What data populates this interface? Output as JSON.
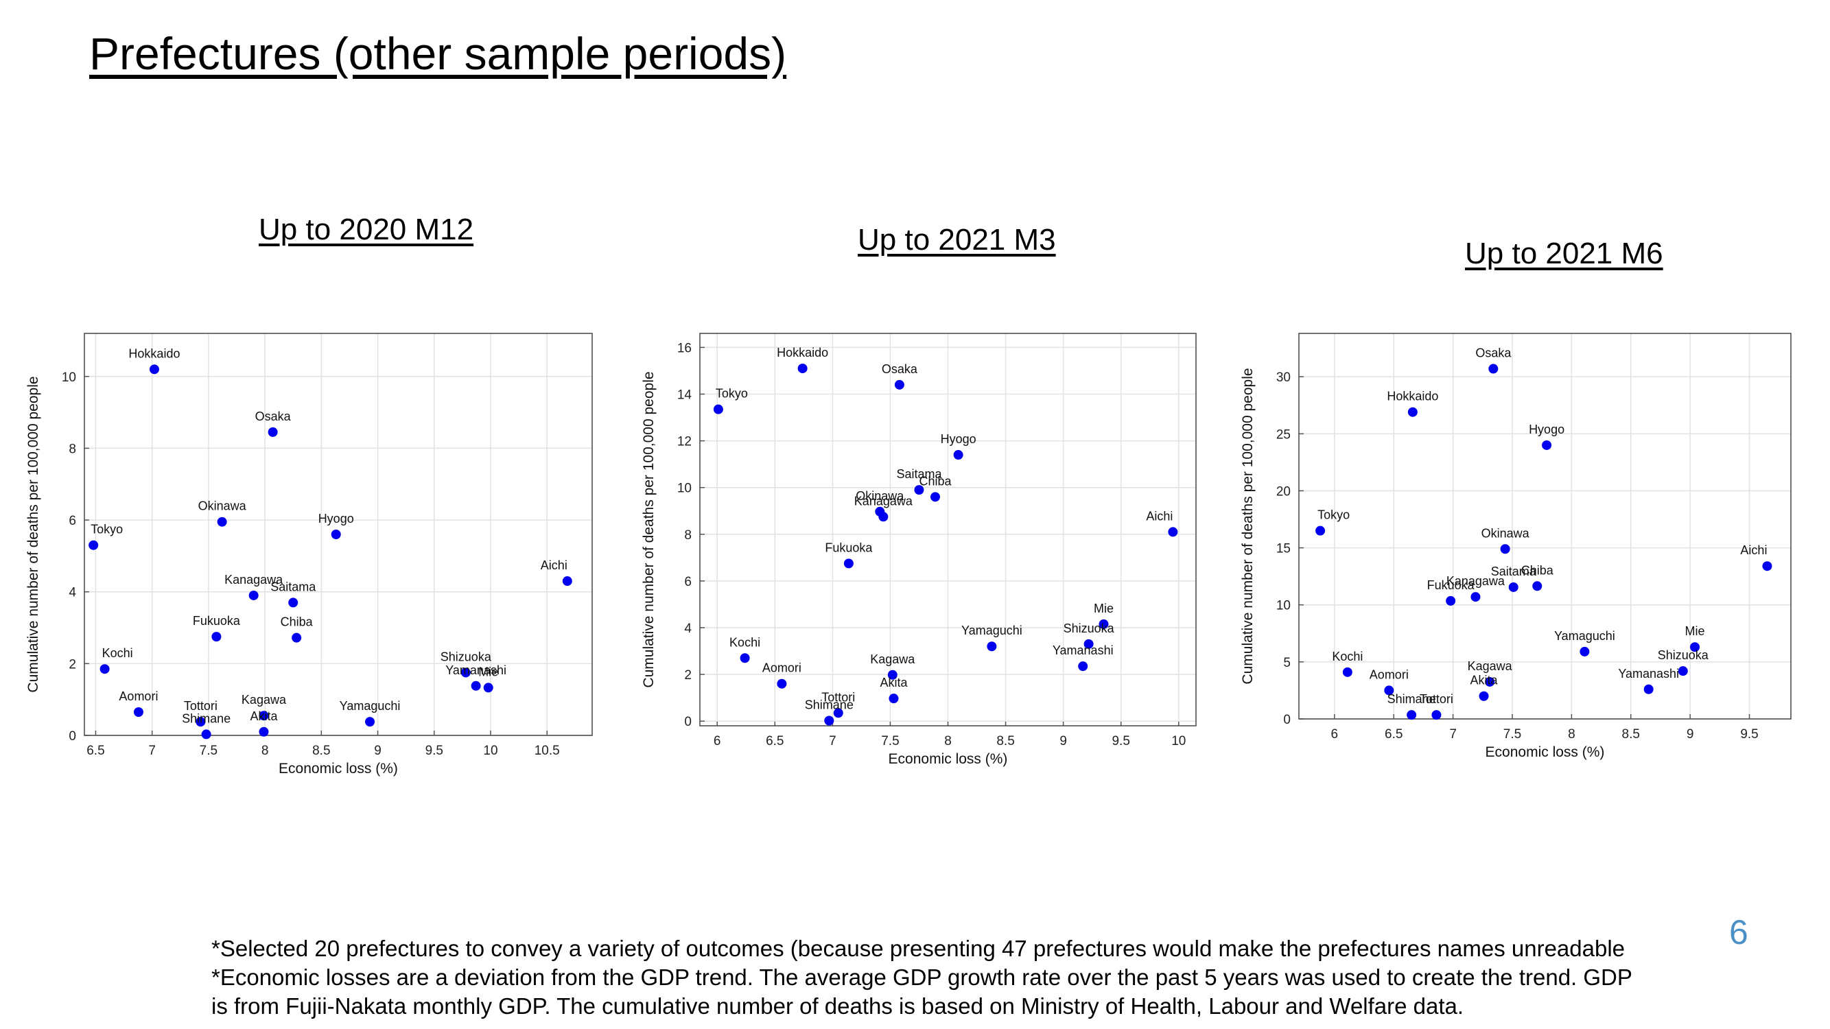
{
  "slide": {
    "title": "Prefectures (other sample periods)",
    "page_number": "6",
    "page_number_color": "#4a90c6",
    "point_color": "#0000ee",
    "footnotes": [
      "*Selected 20 prefectures to convey a variety of outcomes (because presenting 47 prefectures would make the prefectures names unreadable",
      "*Economic losses are a deviation from the GDP trend. The average GDP growth rate over the past 5 years was used to create the trend. GDP",
      "is from Fujii-Nakata monthly GDP. The cumulative number of deaths is based on Ministry of Health, Labour and Welfare data."
    ]
  },
  "chart_data": [
    {
      "type": "scatter",
      "title": "Up to 2020 M12",
      "xlabel": "Economic loss (%)",
      "ylabel": "Cumulative number of deaths per 100,000 people",
      "xlim": [
        6.4,
        10.9
      ],
      "ylim": [
        0,
        11.2
      ],
      "xticks": [
        "6.5",
        "7",
        "7.5",
        "8",
        "8.5",
        "9",
        "9.5",
        "10",
        "10.5"
      ],
      "yticks": [
        "0",
        "2",
        "4",
        "6",
        "8",
        "10"
      ],
      "grid": true,
      "points": [
        {
          "label": "Hokkaido",
          "x": 7.02,
          "y": 10.2
        },
        {
          "label": "Osaka",
          "x": 8.07,
          "y": 8.45
        },
        {
          "label": "Okinawa",
          "x": 7.62,
          "y": 5.95
        },
        {
          "label": "Hyogo",
          "x": 8.63,
          "y": 5.6
        },
        {
          "label": "Tokyo",
          "x": 6.48,
          "y": 5.3
        },
        {
          "label": "Aichi",
          "x": 10.68,
          "y": 4.3
        },
        {
          "label": "Kanagawa",
          "x": 7.9,
          "y": 3.9
        },
        {
          "label": "Saitama",
          "x": 8.25,
          "y": 3.7
        },
        {
          "label": "Fukuoka",
          "x": 7.57,
          "y": 2.75
        },
        {
          "label": "Chiba",
          "x": 8.28,
          "y": 2.72
        },
        {
          "label": "Kochi",
          "x": 6.58,
          "y": 1.85
        },
        {
          "label": "Shizuoka",
          "x": 9.78,
          "y": 1.75
        },
        {
          "label": "Yamanashi",
          "x": 9.87,
          "y": 1.38
        },
        {
          "label": "Mie",
          "x": 9.98,
          "y": 1.33
        },
        {
          "label": "Aomori",
          "x": 6.88,
          "y": 0.65
        },
        {
          "label": "Kagawa",
          "x": 7.99,
          "y": 0.55
        },
        {
          "label": "Tottori",
          "x": 7.43,
          "y": 0.38
        },
        {
          "label": "Yamaguchi",
          "x": 8.93,
          "y": 0.38
        },
        {
          "label": "Shimane",
          "x": 7.48,
          "y": 0.03
        },
        {
          "label": "Akita",
          "x": 7.99,
          "y": 0.1
        }
      ]
    },
    {
      "type": "scatter",
      "title": "Up to 2021 M3",
      "xlabel": "Economic loss (%)",
      "ylabel": "Cumulative number of deaths per 100,000 people",
      "xlim": [
        5.85,
        10.15
      ],
      "ylim": [
        -0.2,
        16.6
      ],
      "xticks": [
        "6",
        "6.5",
        "7",
        "7.5",
        "8",
        "8.5",
        "9",
        "9.5",
        "10"
      ],
      "yticks": [
        "0",
        "2",
        "4",
        "6",
        "8",
        "10",
        "12",
        "14",
        "16"
      ],
      "grid": true,
      "points": [
        {
          "label": "Hokkaido",
          "x": 6.74,
          "y": 15.1
        },
        {
          "label": "Osaka",
          "x": 7.58,
          "y": 14.4
        },
        {
          "label": "Tokyo",
          "x": 6.01,
          "y": 13.35
        },
        {
          "label": "Hyogo",
          "x": 8.09,
          "y": 11.4
        },
        {
          "label": "Saitama",
          "x": 7.75,
          "y": 9.9
        },
        {
          "label": "Chiba",
          "x": 7.89,
          "y": 9.6
        },
        {
          "label": "Okinawa",
          "x": 7.41,
          "y": 8.97
        },
        {
          "label": "Kanagawa",
          "x": 7.44,
          "y": 8.75
        },
        {
          "label": "Aichi",
          "x": 9.95,
          "y": 8.1
        },
        {
          "label": "Fukuoka",
          "x": 7.14,
          "y": 6.75
        },
        {
          "label": "Mie",
          "x": 9.35,
          "y": 4.15
        },
        {
          "label": "Yamaguchi",
          "x": 8.38,
          "y": 3.2
        },
        {
          "label": "Shizuoka",
          "x": 9.22,
          "y": 3.3
        },
        {
          "label": "Kochi",
          "x": 6.24,
          "y": 2.7
        },
        {
          "label": "Yamanashi",
          "x": 9.17,
          "y": 2.35
        },
        {
          "label": "Kagawa",
          "x": 7.52,
          "y": 1.98
        },
        {
          "label": "Aomori",
          "x": 6.56,
          "y": 1.6
        },
        {
          "label": "Akita",
          "x": 7.53,
          "y": 0.97
        },
        {
          "label": "Tottori",
          "x": 7.05,
          "y": 0.35
        },
        {
          "label": "Shimane",
          "x": 6.97,
          "y": 0.02
        }
      ]
    },
    {
      "type": "scatter",
      "title": "Up to 2021 M6",
      "xlabel": "Economic loss (%)",
      "ylabel": "Cumulative number of deaths per 100,000 people",
      "xlim": [
        5.7,
        9.85
      ],
      "ylim": [
        0,
        33.8
      ],
      "xticks": [
        "6",
        "6.5",
        "7",
        "7.5",
        "8",
        "8.5",
        "9",
        "9.5"
      ],
      "yticks": [
        "0",
        "5",
        "10",
        "15",
        "20",
        "25",
        "30"
      ],
      "grid": true,
      "points": [
        {
          "label": "Osaka",
          "x": 7.34,
          "y": 30.7
        },
        {
          "label": "Hokkaido",
          "x": 6.66,
          "y": 26.9
        },
        {
          "label": "Hyogo",
          "x": 7.79,
          "y": 24.0
        },
        {
          "label": "Tokyo",
          "x": 5.88,
          "y": 16.5
        },
        {
          "label": "Okinawa",
          "x": 7.44,
          "y": 14.9
        },
        {
          "label": "Aichi",
          "x": 9.65,
          "y": 13.4
        },
        {
          "label": "Saitama",
          "x": 7.51,
          "y": 11.55
        },
        {
          "label": "Chiba",
          "x": 7.71,
          "y": 11.65
        },
        {
          "label": "Kanagawa",
          "x": 7.19,
          "y": 10.7
        },
        {
          "label": "Fukuoka",
          "x": 6.98,
          "y": 10.35
        },
        {
          "label": "Mie",
          "x": 9.04,
          "y": 6.3
        },
        {
          "label": "Yamaguchi",
          "x": 8.11,
          "y": 5.9
        },
        {
          "label": "Shizuoka",
          "x": 8.94,
          "y": 4.2
        },
        {
          "label": "Kochi",
          "x": 6.11,
          "y": 4.1
        },
        {
          "label": "Kagawa",
          "x": 7.31,
          "y": 3.25
        },
        {
          "label": "Yamanashi",
          "x": 8.65,
          "y": 2.6
        },
        {
          "label": "Aomori",
          "x": 6.46,
          "y": 2.5
        },
        {
          "label": "Akita",
          "x": 7.26,
          "y": 2.0
        },
        {
          "label": "Shimane",
          "x": 6.65,
          "y": 0.35
        },
        {
          "label": "Tottori",
          "x": 6.86,
          "y": 0.35
        }
      ]
    }
  ]
}
